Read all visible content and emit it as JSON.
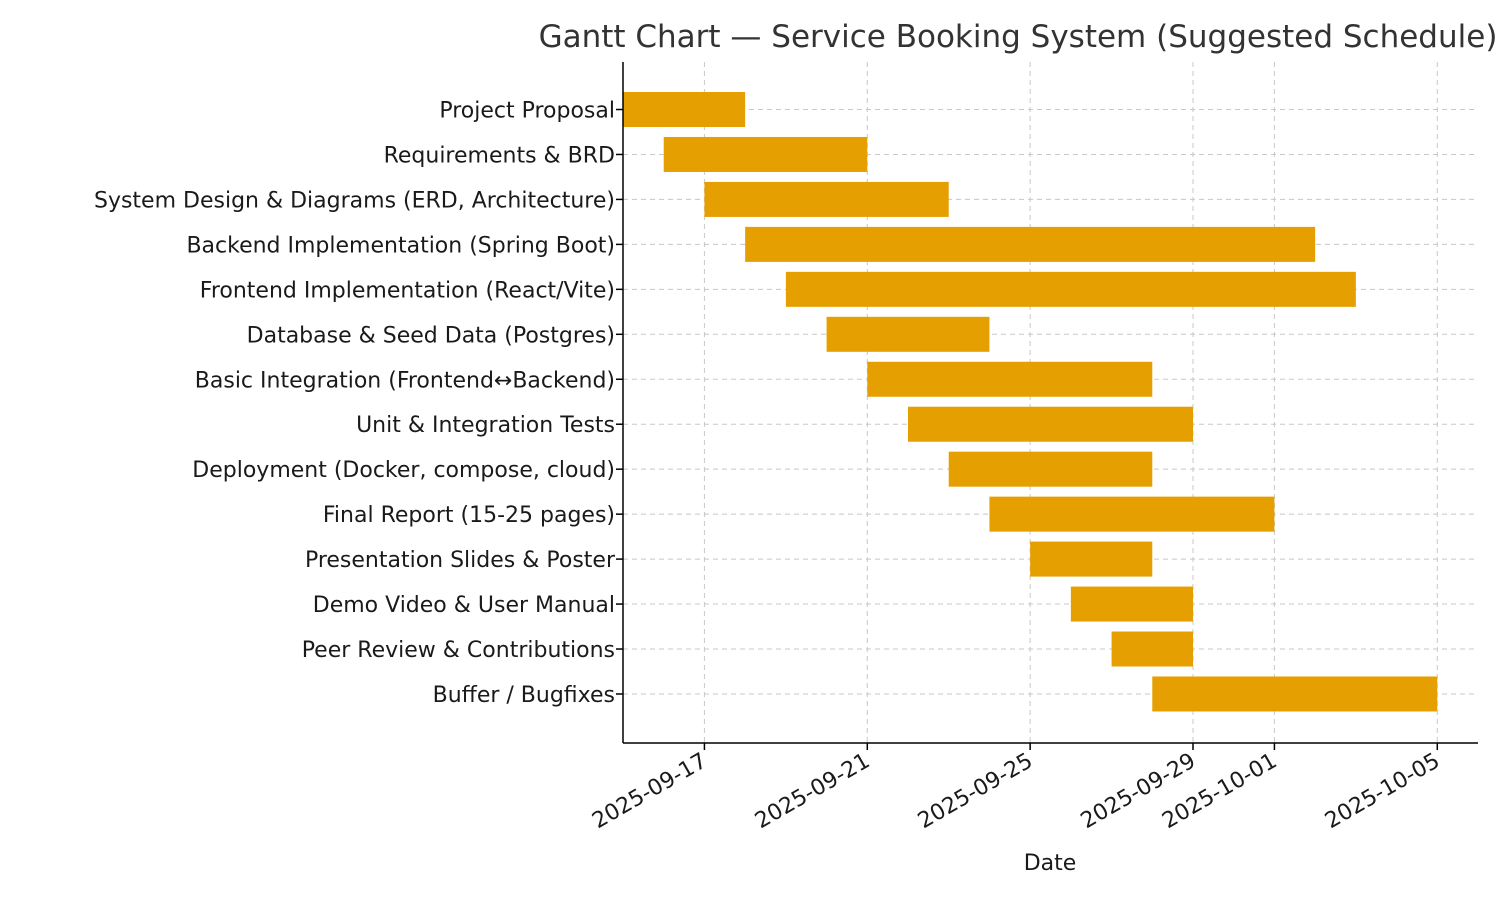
{
  "chart_data": {
    "type": "gantt",
    "title": "Gantt Chart — Service Booking System (Suggested Schedule)",
    "xlabel": "Date",
    "ylabel": "",
    "grid": true,
    "bar_color": "#E69F00",
    "x_range": [
      "2025-09-15",
      "2025-10-06"
    ],
    "x_ticks": [
      "2025-09-17",
      "2025-09-21",
      "2025-09-25",
      "2025-09-29",
      "2025-10-01",
      "2025-10-05"
    ],
    "tasks": [
      {
        "name": "Project Proposal",
        "start": "2025-09-15",
        "end": "2025-09-18"
      },
      {
        "name": "Requirements & BRD",
        "start": "2025-09-16",
        "end": "2025-09-21"
      },
      {
        "name": "System Design & Diagrams (ERD, Architecture)",
        "start": "2025-09-17",
        "end": "2025-09-23"
      },
      {
        "name": "Backend Implementation (Spring Boot)",
        "start": "2025-09-18",
        "end": "2025-10-02"
      },
      {
        "name": "Frontend Implementation (React/Vite)",
        "start": "2025-09-19",
        "end": "2025-10-03"
      },
      {
        "name": "Database & Seed Data (Postgres)",
        "start": "2025-09-20",
        "end": "2025-09-24"
      },
      {
        "name": "Basic Integration (Frontend↔Backend)",
        "start": "2025-09-21",
        "end": "2025-09-28"
      },
      {
        "name": "Unit & Integration Tests",
        "start": "2025-09-22",
        "end": "2025-09-29"
      },
      {
        "name": "Deployment (Docker, compose, cloud)",
        "start": "2025-09-23",
        "end": "2025-09-28"
      },
      {
        "name": "Final Report (15-25 pages)",
        "start": "2025-09-24",
        "end": "2025-10-01"
      },
      {
        "name": "Presentation Slides & Poster",
        "start": "2025-09-25",
        "end": "2025-09-28"
      },
      {
        "name": "Demo Video & User Manual",
        "start": "2025-09-26",
        "end": "2025-09-29"
      },
      {
        "name": "Peer Review & Contributions",
        "start": "2025-09-27",
        "end": "2025-09-29"
      },
      {
        "name": "Buffer / Bugfixes",
        "start": "2025-09-28",
        "end": "2025-10-05"
      }
    ]
  }
}
